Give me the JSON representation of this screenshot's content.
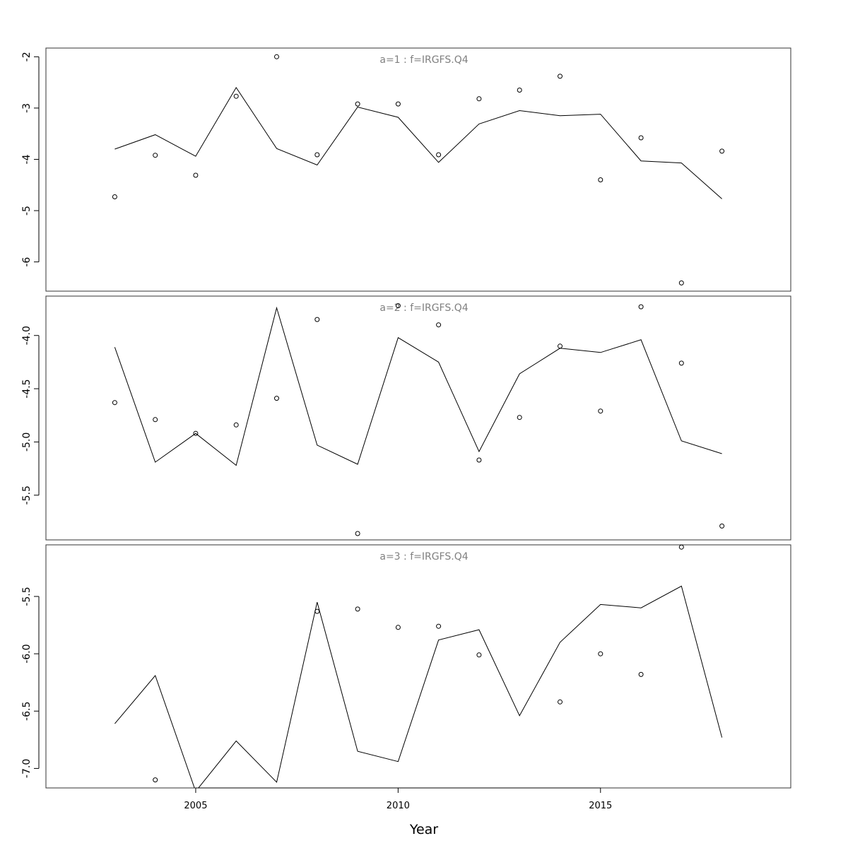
{
  "chart_data": {
    "type": "line",
    "xlabel": "Year",
    "x_ticks": [
      2005,
      2010,
      2015
    ],
    "xlim": [
      2001.3,
      2019.7
    ],
    "colors": {
      "line": "#000000",
      "points": "#000000",
      "panel_title": "#808080"
    },
    "panels": [
      {
        "title": "a=1  :  f=IRGFS.Q4",
        "ylim": [
          -6.57,
          -1.83
        ],
        "y_ticks": [
          -2,
          -3,
          -4,
          -5,
          -6
        ],
        "y_tick_labels": [
          "-2",
          "-3",
          "-4",
          "-5",
          "-6"
        ],
        "series": [
          {
            "kind": "line",
            "x": [
              2003,
              2004,
              2005,
              2006,
              2007,
              2008,
              2009,
              2010,
              2011,
              2012,
              2013,
              2014,
              2015,
              2016,
              2017,
              2018
            ],
            "values": [
              -3.8,
              -3.52,
              -3.94,
              -2.6,
              -3.79,
              -4.11,
              -2.98,
              -3.18,
              -4.06,
              -3.31,
              -3.05,
              -3.15,
              -3.12,
              -4.03,
              -4.07,
              -4.77
            ]
          },
          {
            "kind": "points",
            "x": [
              2003,
              2004,
              2005,
              2006,
              2007,
              2008,
              2009,
              2010,
              2011,
              2012,
              2013,
              2014,
              2015,
              2016,
              2017,
              2018
            ],
            "values": [
              -4.73,
              -3.92,
              -4.31,
              -2.77,
              -2.0,
              -3.91,
              -2.92,
              -2.92,
              -3.91,
              -2.82,
              -2.65,
              -2.38,
              -4.4,
              -3.58,
              -6.41,
              -3.84
            ]
          }
        ]
      },
      {
        "title": "a=2  :  f=IRGFS.Q4",
        "ylim": [
          -5.92,
          -3.63
        ],
        "y_ticks": [
          -4.0,
          -4.5,
          -5.0,
          -5.5
        ],
        "y_tick_labels": [
          "-4.0",
          "-4.5",
          "-5.0",
          "-5.5"
        ],
        "series": [
          {
            "kind": "line",
            "x": [
              2003,
              2004,
              2005,
              2006,
              2007,
              2008,
              2009,
              2010,
              2011,
              2012,
              2013,
              2014,
              2015,
              2016,
              2017,
              2018
            ],
            "values": [
              -4.11,
              -5.19,
              -4.92,
              -5.22,
              -3.74,
              -5.03,
              -5.21,
              -4.02,
              -4.25,
              -5.09,
              -4.36,
              -4.12,
              -4.16,
              -4.04,
              -4.99,
              -5.11
            ]
          },
          {
            "kind": "points",
            "x": [
              2003,
              2004,
              2005,
              2006,
              2007,
              2008,
              2009,
              2010,
              2011,
              2012,
              2013,
              2014,
              2015,
              2016,
              2017,
              2018
            ],
            "values": [
              -4.63,
              -4.79,
              -4.92,
              -4.84,
              -4.59,
              -3.85,
              -5.86,
              -3.72,
              -3.9,
              -5.17,
              -4.77,
              -4.1,
              -4.71,
              -3.73,
              -4.26,
              -5.79
            ]
          }
        ]
      },
      {
        "title": "a=3  :  f=IRGFS.Q4",
        "ylim": [
          -7.17,
          -5.05
        ],
        "y_ticks": [
          -5.5,
          -6.0,
          -6.5,
          -7.0
        ],
        "y_tick_labels": [
          "-5.5",
          "-6.0",
          "-6.5",
          "-7.0"
        ],
        "series": [
          {
            "kind": "line",
            "x": [
              2003,
              2004,
              2005,
              2006,
              2007,
              2008,
              2009,
              2010,
              2011,
              2012,
              2013,
              2014,
              2015,
              2016,
              2017,
              2018
            ],
            "values": [
              -6.61,
              -6.19,
              -7.2,
              -6.76,
              -7.12,
              -5.55,
              -6.85,
              -6.94,
              -5.88,
              -5.79,
              -6.54,
              -5.9,
              -5.57,
              -5.6,
              -5.41,
              -6.73
            ]
          },
          {
            "kind": "points",
            "x": [
              2004,
              2008,
              2009,
              2010,
              2011,
              2012,
              2014,
              2015,
              2016,
              2017
            ],
            "values": [
              -7.1,
              -5.63,
              -5.61,
              -5.77,
              -5.76,
              -6.01,
              -6.42,
              -6.0,
              -6.18,
              -5.07
            ]
          }
        ]
      }
    ]
  }
}
